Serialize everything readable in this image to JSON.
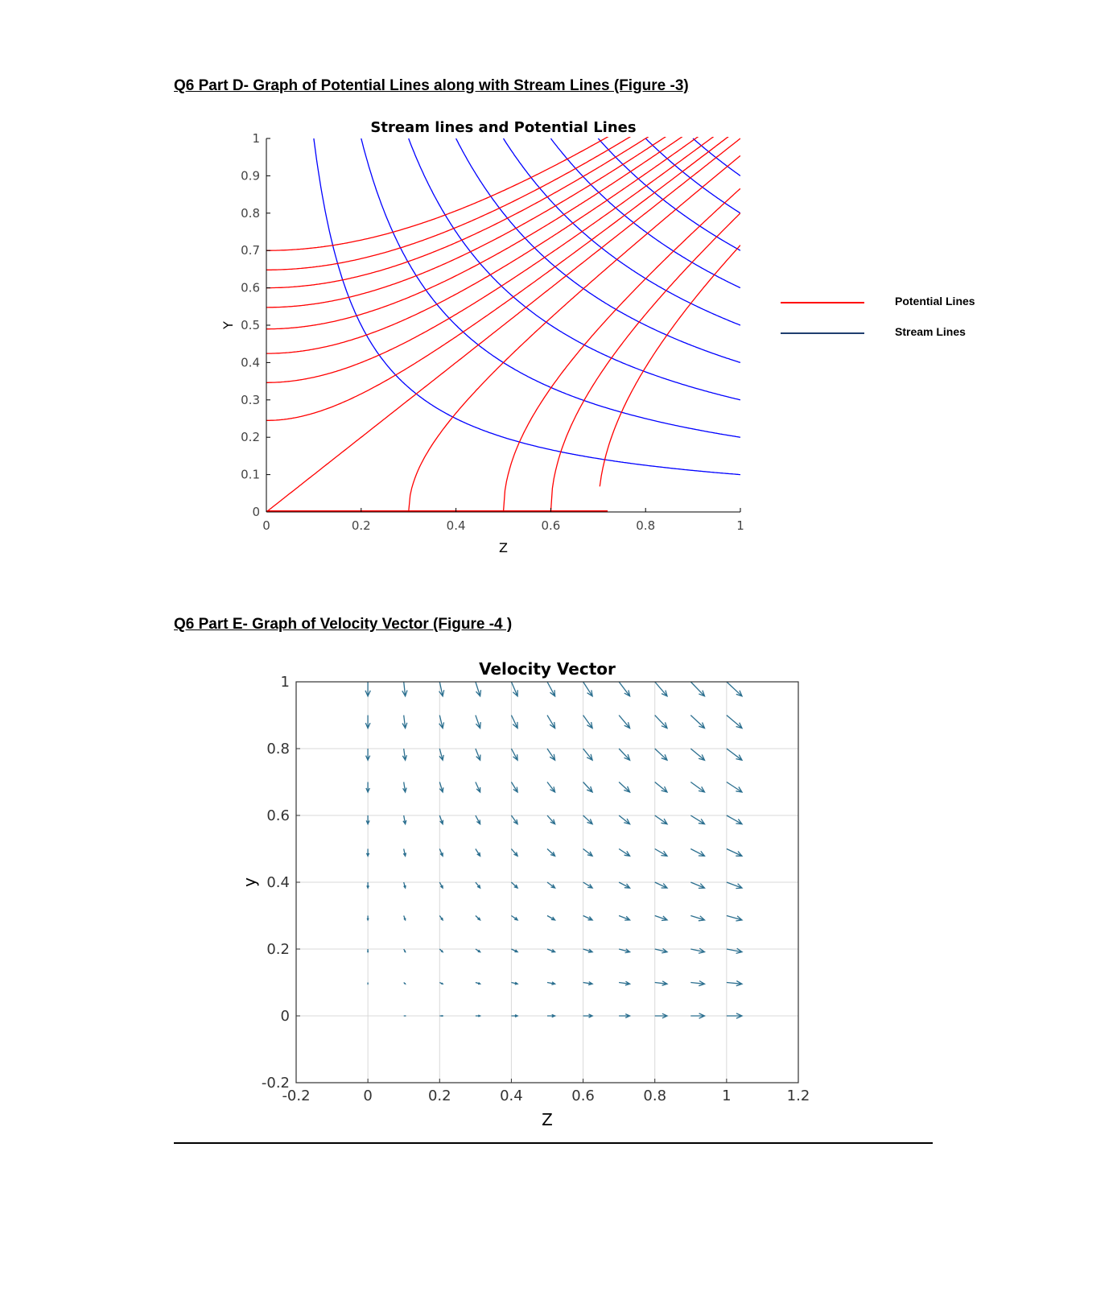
{
  "headings": {
    "part_d": "Q6 Part D- Graph of Potential Lines along with Stream Lines  (Figure -3)",
    "part_e": "Q6 Part E- Graph of Velocity Vector (Figure -4 )"
  },
  "legend": {
    "items": [
      {
        "label": "Potential Lines",
        "color": "#ff0000"
      },
      {
        "label": "Stream Lines",
        "color": "#1f3f6f"
      }
    ]
  },
  "chart_data": [
    {
      "type": "line",
      "title": "Stream lines and Potential Lines",
      "xlabel": "Z",
      "ylabel": "Y",
      "xlim": [
        0,
        1
      ],
      "ylim": [
        0,
        1
      ],
      "xticks": [
        "0",
        "0.2",
        "0.4",
        "0.6",
        "0.8",
        "1"
      ],
      "yticks": [
        "0",
        "0.1",
        "0.2",
        "0.3",
        "0.4",
        "0.5",
        "0.6",
        "0.7",
        "0.8",
        "0.9",
        "1"
      ],
      "stream_color": "#0000ff",
      "potential_color": "#ff0000",
      "stream_constants": [
        0.1,
        0.2,
        0.3,
        0.4,
        0.5,
        0.6,
        0.7,
        0.8,
        0.9
      ],
      "potential_constants": [
        -0.49,
        -0.42,
        -0.36,
        -0.3,
        -0.24,
        -0.18,
        -0.12,
        -0.06,
        0.0,
        0.09,
        0.25,
        0.36,
        0.49
      ]
    },
    {
      "type": "quiver",
      "title": "Velocity Vector",
      "xlabel": "Z",
      "ylabel": "y",
      "xlim": [
        -0.2,
        1.2
      ],
      "ylim": [
        -0.2,
        1
      ],
      "xticks": [
        "-0.2",
        "0",
        "0.2",
        "0.4",
        "0.6",
        "0.8",
        "1",
        "1.2"
      ],
      "yticks": [
        "-0.2",
        "0",
        "0.2",
        "0.4",
        "0.6",
        "0.8",
        "1"
      ],
      "grid": true,
      "arrow_color": "#2b6f8f",
      "x": [
        0,
        0.1,
        0.2,
        0.3,
        0.4,
        0.5,
        0.6,
        0.7,
        0.8,
        0.9,
        1.0
      ],
      "y": [
        0,
        0.1,
        0.2,
        0.3,
        0.4,
        0.5,
        0.6,
        0.7,
        0.8,
        0.9,
        1.0
      ],
      "u_formula": "z",
      "v_formula": "-y"
    }
  ]
}
